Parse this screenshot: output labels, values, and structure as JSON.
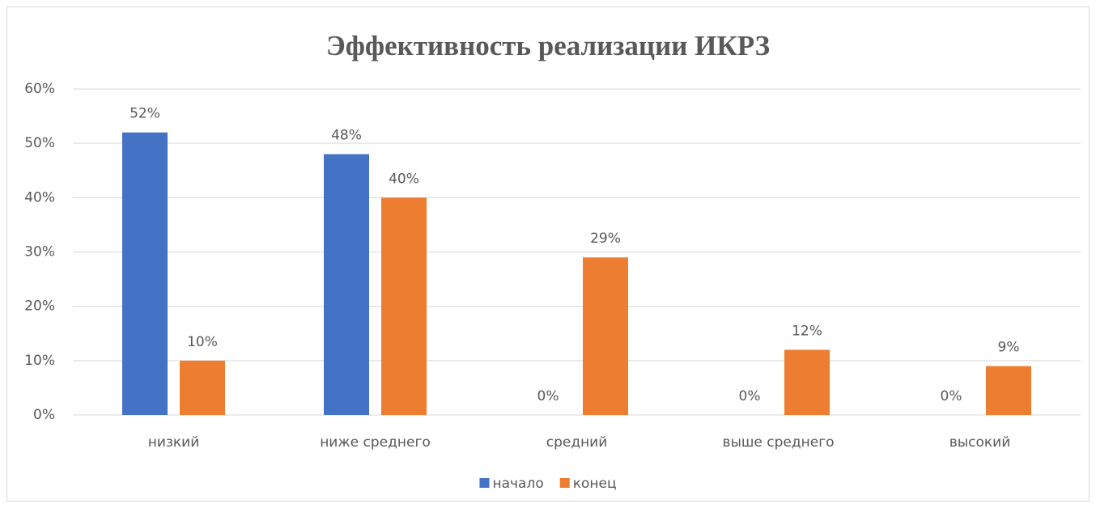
{
  "chart_data": {
    "type": "bar",
    "title": "Эффективность реализации ИКРЗ",
    "categories": [
      "низкий",
      "ниже среднего",
      "средний",
      "выше среднего",
      "высокий"
    ],
    "series": [
      {
        "name": "начало",
        "color": "#4472c4",
        "values": [
          52,
          48,
          0,
          0,
          0
        ],
        "value_labels": [
          "52%",
          "48%",
          "0%",
          "0%",
          "0%"
        ]
      },
      {
        "name": "конец",
        "color": "#ed7d31",
        "values": [
          10,
          40,
          29,
          12,
          9
        ],
        "value_labels": [
          "10%",
          "40%",
          "29%",
          "12%",
          "9%"
        ]
      }
    ],
    "ylim": [
      0,
      60
    ],
    "yticks": [
      {
        "value": 0,
        "label": "0%"
      },
      {
        "value": 10,
        "label": "10%"
      },
      {
        "value": 20,
        "label": "20%"
      },
      {
        "value": 30,
        "label": "30%"
      },
      {
        "value": 40,
        "label": "40%"
      },
      {
        "value": 50,
        "label": "50%"
      },
      {
        "value": 60,
        "label": "60%"
      }
    ],
    "grid": true,
    "legend": "bottom"
  }
}
